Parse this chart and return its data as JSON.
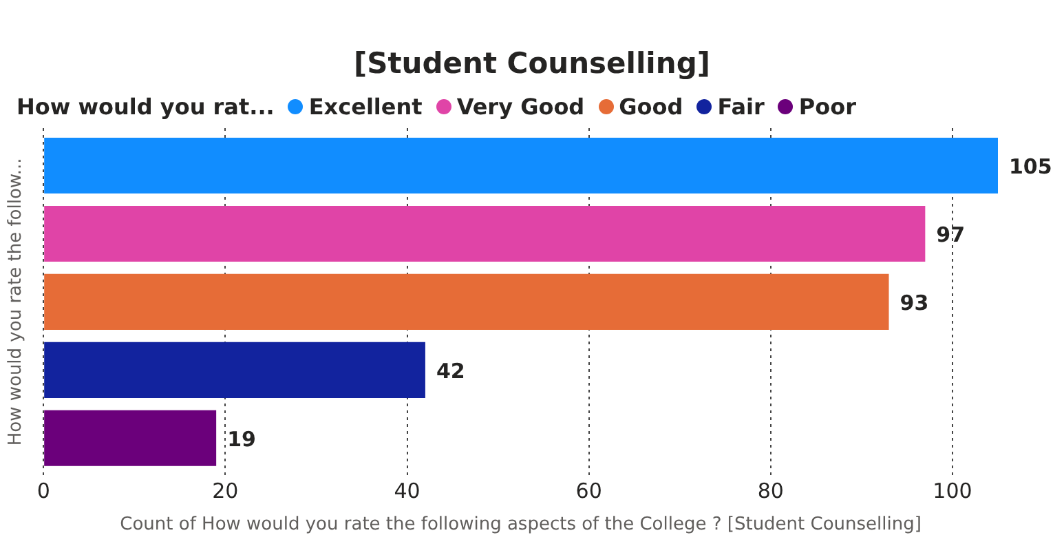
{
  "chart_data": {
    "type": "bar",
    "orientation": "horizontal",
    "title": "[Student Counselling]",
    "legend_title": "How would you rat...",
    "ylabel": "How would you rate the follow...",
    "xlabel": "Count of How would you rate the following aspects of the College ? [Student Counselling]",
    "categories": [
      null
    ],
    "series": [
      {
        "name": "Excellent",
        "color": "#118dff",
        "values": [
          105
        ]
      },
      {
        "name": "Very Good",
        "color": "#e044a7",
        "values": [
          97
        ]
      },
      {
        "name": "Good",
        "color": "#e66c37",
        "values": [
          93
        ]
      },
      {
        "name": "Fair",
        "color": "#12239e",
        "values": [
          42
        ]
      },
      {
        "name": "Poor",
        "color": "#6b007b",
        "values": [
          19
        ]
      }
    ],
    "xlim": [
      0,
      105
    ],
    "xticks": [
      0,
      20,
      40,
      60,
      80,
      100
    ],
    "grid": "x",
    "legend": "top",
    "data_labels": true
  }
}
